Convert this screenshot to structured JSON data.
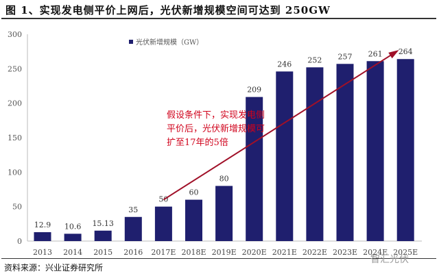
{
  "title": "图 1、实现发电侧平价上网后，光伏新增规模空间可达到 250GW",
  "source": "资料来源：兴业证券研究所",
  "watermark": "智汇光伏",
  "chart_data": {
    "type": "bar",
    "categories": [
      "2013",
      "2014",
      "2015",
      "2016",
      "2017E",
      "2018E",
      "2019E",
      "2020E",
      "2021E",
      "2022E",
      "2023E",
      "2024E",
      "2025E"
    ],
    "series": [
      {
        "name": "光伏新增规模（GW）",
        "values": [
          12.9,
          10.6,
          15.13,
          35,
          50,
          60,
          80,
          209,
          246,
          252,
          257,
          261,
          264
        ],
        "labels": [
          "12.9",
          "10.6",
          "15.13",
          "35",
          "50",
          "60",
          "80",
          "209",
          "246",
          "252",
          "257",
          "261",
          "264"
        ]
      }
    ],
    "ylim": [
      0,
      300
    ],
    "yticks": [
      0,
      50,
      100,
      150,
      200,
      250,
      300
    ],
    "legend": "top-left",
    "grid": false,
    "bar_color": "#1f1f6e",
    "annotation": {
      "lines": [
        "假设条件下，实现发电侧",
        "平价后，光伏新增规模可",
        "扩至17年的5倍"
      ],
      "color": "#d0021b",
      "arrow_from": [
        "2017E",
        50
      ],
      "arrow_to": [
        "2025E",
        275
      ]
    }
  }
}
